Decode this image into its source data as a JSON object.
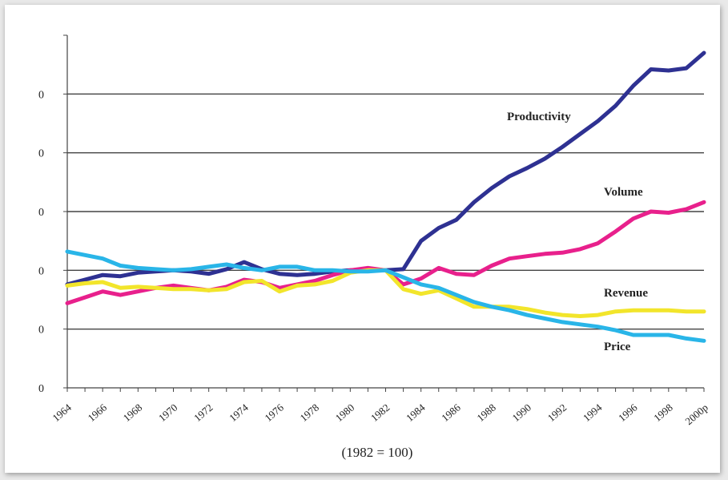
{
  "chart_data": {
    "type": "line",
    "title": "",
    "xlabel": "(1982 = 100)",
    "ylabel": "",
    "x_tick_labels": [
      "1964",
      "1966",
      "1968",
      "1970",
      "1972",
      "1974",
      "1976",
      "1978",
      "1980",
      "1982",
      "1984",
      "1986",
      "1988",
      "1990",
      "1992",
      "1994",
      "1996",
      "1998",
      "2000p"
    ],
    "y_tick_labels": [
      "0",
      "0",
      "0",
      "0",
      "0",
      "0",
      "0"
    ],
    "xlim": [
      1964,
      2000
    ],
    "ylim": [
      0,
      300
    ],
    "grid": "horizontal",
    "legend": "none (inline labels)",
    "x": [
      1964,
      1965,
      1966,
      1967,
      1968,
      1969,
      1970,
      1971,
      1972,
      1973,
      1974,
      1975,
      1976,
      1977,
      1978,
      1979,
      1980,
      1981,
      1982,
      1983,
      1984,
      1985,
      1986,
      1987,
      1988,
      1989,
      1990,
      1991,
      1992,
      1993,
      1994,
      1995,
      1996,
      1997,
      1998,
      1999,
      2000
    ],
    "series": [
      {
        "name": "Productivity",
        "color": "#2e3192",
        "values": [
          88,
          92,
          96,
          95,
          98,
          99,
          100,
          99,
          97,
          101,
          107,
          101,
          97,
          96,
          97,
          99,
          100,
          101,
          100,
          101,
          125,
          136,
          143,
          158,
          170,
          180,
          187,
          195,
          205,
          216,
          227,
          240,
          257,
          271,
          270,
          272,
          285
        ]
      },
      {
        "name": "Volume",
        "color": "#e8208c",
        "values": [
          72,
          77,
          82,
          79,
          82,
          85,
          87,
          85,
          83,
          86,
          92,
          90,
          85,
          88,
          91,
          96,
          100,
          102,
          100,
          88,
          93,
          102,
          97,
          96,
          104,
          110,
          112,
          114,
          115,
          118,
          123,
          133,
          144,
          150,
          149,
          152,
          158
        ]
      },
      {
        "name": "Revenue",
        "color": "#f2e52b",
        "values": [
          87,
          89,
          90,
          85,
          86,
          85,
          84,
          84,
          83,
          84,
          90,
          91,
          82,
          87,
          88,
          91,
          98,
          100,
          100,
          84,
          80,
          83,
          76,
          69,
          69,
          69,
          67,
          64,
          62,
          61,
          62,
          65,
          66,
          66,
          66,
          65,
          65
        ]
      },
      {
        "name": "Price",
        "color": "#29b5e8",
        "values": [
          116,
          113,
          110,
          104,
          102,
          101,
          100,
          101,
          103,
          105,
          102,
          100,
          103,
          103,
          100,
          100,
          99,
          99,
          100,
          94,
          88,
          85,
          79,
          73,
          69,
          66,
          62,
          59,
          56,
          54,
          52,
          49,
          45,
          45,
          45,
          42,
          40
        ]
      }
    ],
    "annotations": [
      "Productivity",
      "Volume",
      "Revenue",
      "Price"
    ]
  }
}
